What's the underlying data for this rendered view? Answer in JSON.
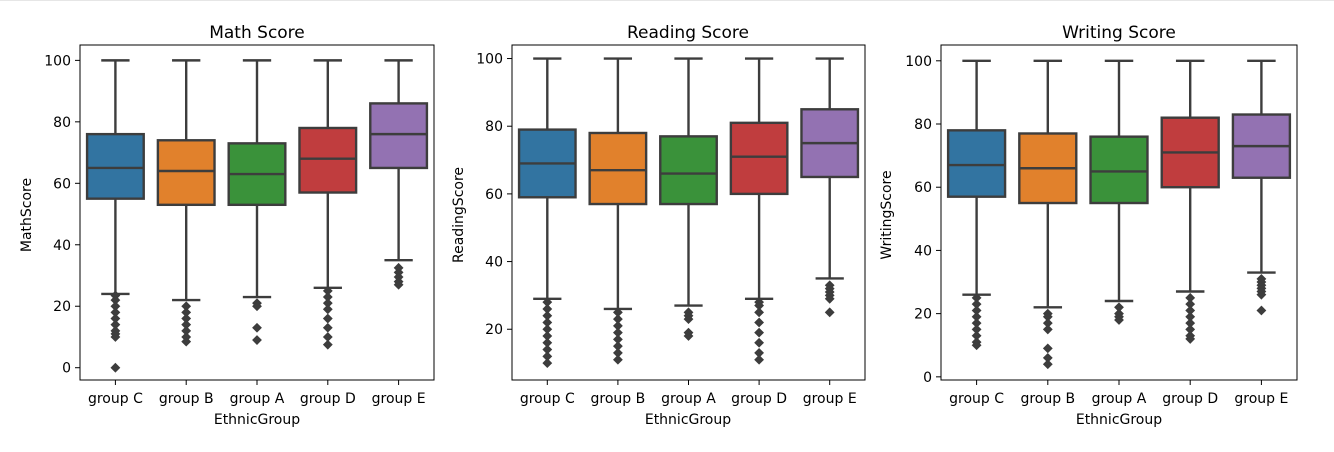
{
  "chart_data": [
    {
      "type": "box",
      "title": "Math Score",
      "xlabel": "EthnicGroup",
      "ylabel": "MathScore",
      "ylim": [
        -4,
        105
      ],
      "yticks": [
        0,
        20,
        40,
        60,
        80,
        100
      ],
      "categories": [
        "group C",
        "group B",
        "group A",
        "group D",
        "group E"
      ],
      "colors": [
        "#3274a1",
        "#e1812c",
        "#3a923a",
        "#c03d3e",
        "#9372b2"
      ],
      "boxes": [
        {
          "q1": 55,
          "median": 65,
          "q3": 76,
          "whisker_low": 24,
          "whisker_high": 100,
          "outliers": [
            23.5,
            22,
            20,
            18,
            16,
            14,
            12,
            11,
            10,
            0
          ]
        },
        {
          "q1": 53,
          "median": 64,
          "q3": 74,
          "whisker_low": 22,
          "whisker_high": 100,
          "outliers": [
            20,
            18,
            16,
            14,
            12,
            10,
            8.5
          ]
        },
        {
          "q1": 53,
          "median": 63,
          "q3": 73,
          "whisker_low": 23,
          "whisker_high": 100,
          "outliers": [
            21,
            20,
            13,
            9
          ]
        },
        {
          "q1": 57,
          "median": 68,
          "q3": 78,
          "whisker_low": 26,
          "whisker_high": 100,
          "outliers": [
            25,
            23,
            21,
            19,
            16,
            13,
            10,
            7.5
          ]
        },
        {
          "q1": 65,
          "median": 76,
          "q3": 86,
          "whisker_low": 35,
          "whisker_high": 100,
          "outliers": [
            32.5,
            31,
            29.5,
            28,
            27
          ]
        }
      ]
    },
    {
      "type": "box",
      "title": "Reading Score",
      "xlabel": "EthnicGroup",
      "ylabel": "ReadingScore",
      "ylim": [
        5,
        104
      ],
      "yticks": [
        20,
        40,
        60,
        80,
        100
      ],
      "categories": [
        "group C",
        "group B",
        "group A",
        "group D",
        "group E"
      ],
      "colors": [
        "#3274a1",
        "#e1812c",
        "#3a923a",
        "#c03d3e",
        "#9372b2"
      ],
      "boxes": [
        {
          "q1": 59,
          "median": 69,
          "q3": 79,
          "whisker_low": 29,
          "whisker_high": 100,
          "outliers": [
            28,
            26,
            24,
            22,
            20,
            18,
            16,
            14,
            12,
            10
          ]
        },
        {
          "q1": 57,
          "median": 67,
          "q3": 78,
          "whisker_low": 26,
          "whisker_high": 100,
          "outliers": [
            25,
            23,
            21,
            19,
            17,
            15,
            13,
            11
          ]
        },
        {
          "q1": 57,
          "median": 66,
          "q3": 77,
          "whisker_low": 27,
          "whisker_high": 100,
          "outliers": [
            25,
            24,
            23,
            19,
            18
          ]
        },
        {
          "q1": 60,
          "median": 71,
          "q3": 81,
          "whisker_low": 29,
          "whisker_high": 100,
          "outliers": [
            28,
            27,
            25,
            22,
            19,
            16,
            13,
            11
          ]
        },
        {
          "q1": 65,
          "median": 75,
          "q3": 85,
          "whisker_low": 35,
          "whisker_high": 100,
          "outliers": [
            33,
            32,
            31,
            30,
            29,
            25
          ]
        }
      ]
    },
    {
      "type": "box",
      "title": "Writing Score",
      "xlabel": "EthnicGroup",
      "ylabel": "WritingScore",
      "ylim": [
        -1,
        105
      ],
      "yticks": [
        0,
        20,
        40,
        60,
        80,
        100
      ],
      "categories": [
        "group C",
        "group B",
        "group A",
        "group D",
        "group E"
      ],
      "colors": [
        "#3274a1",
        "#e1812c",
        "#3a923a",
        "#c03d3e",
        "#9372b2"
      ],
      "boxes": [
        {
          "q1": 57,
          "median": 67,
          "q3": 78,
          "whisker_low": 26,
          "whisker_high": 100,
          "outliers": [
            25,
            23,
            21,
            19,
            17,
            15,
            13,
            11,
            10
          ]
        },
        {
          "q1": 55,
          "median": 66,
          "q3": 77,
          "whisker_low": 22,
          "whisker_high": 100,
          "outliers": [
            20,
            19,
            17,
            15,
            9,
            6,
            4
          ]
        },
        {
          "q1": 55,
          "median": 65,
          "q3": 76,
          "whisker_low": 24,
          "whisker_high": 100,
          "outliers": [
            22,
            20,
            19,
            18
          ]
        },
        {
          "q1": 60,
          "median": 71,
          "q3": 82,
          "whisker_low": 27,
          "whisker_high": 100,
          "outliers": [
            25,
            23,
            21,
            19,
            17,
            15,
            13,
            12
          ]
        },
        {
          "q1": 63,
          "median": 73,
          "q3": 83,
          "whisker_low": 33,
          "whisker_high": 100,
          "outliers": [
            31,
            30,
            29,
            28,
            27,
            26,
            21
          ]
        }
      ]
    }
  ]
}
